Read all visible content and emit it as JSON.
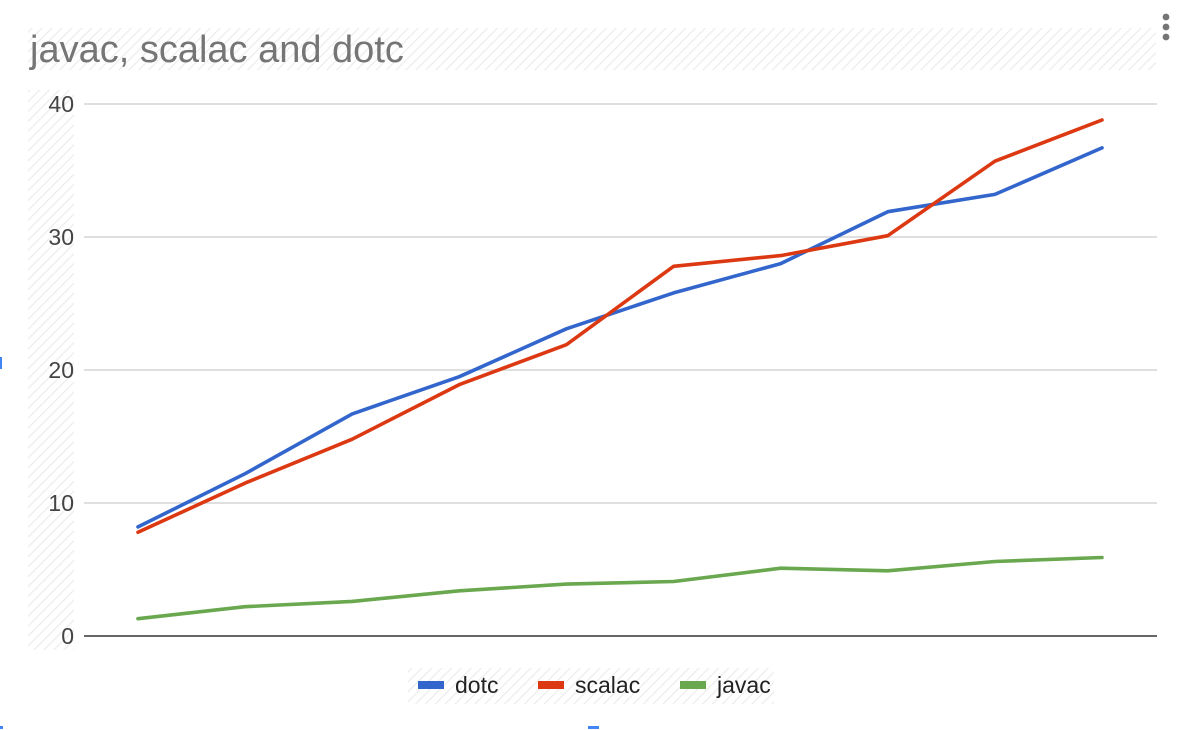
{
  "chart_data": {
    "type": "line",
    "title": "javac, scalac and dotc",
    "xlabel": "",
    "ylabel": "",
    "ylim": [
      0,
      40
    ],
    "yticks": [
      0,
      10,
      20,
      30,
      40
    ],
    "grid": true,
    "legend_position": "bottom",
    "x": [
      1,
      2,
      3,
      4,
      5,
      6,
      7,
      8,
      9,
      10
    ],
    "series": [
      {
        "name": "dotc",
        "color": "#3366cc",
        "values": [
          8.2,
          12.2,
          16.7,
          19.5,
          23.1,
          25.8,
          28.0,
          31.9,
          33.2,
          36.7
        ]
      },
      {
        "name": "scalac",
        "color": "#dc3912",
        "values": [
          7.8,
          11.5,
          14.8,
          18.9,
          21.9,
          27.8,
          28.6,
          30.1,
          35.7,
          38.8
        ]
      },
      {
        "name": "javac",
        "color": "#6aa84f",
        "values": [
          1.3,
          2.2,
          2.6,
          3.4,
          3.9,
          4.1,
          5.1,
          4.9,
          5.6,
          5.9
        ]
      }
    ]
  },
  "icons": {
    "menu": "vertical-dots-menu-icon"
  }
}
